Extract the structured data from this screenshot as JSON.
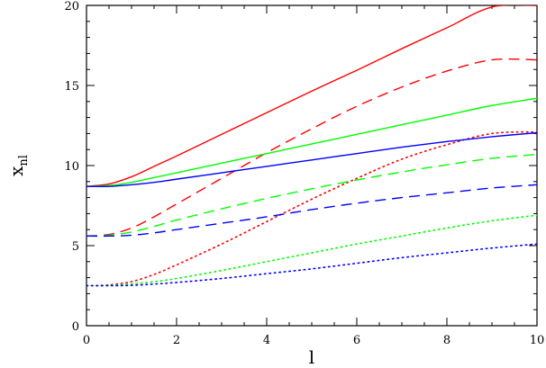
{
  "chart_data": {
    "type": "line",
    "title": "",
    "xlabel": "l",
    "ylabel_main": "x",
    "ylabel_sub": "nl",
    "xlim": [
      0,
      10
    ],
    "ylim": [
      0,
      20
    ],
    "xticks": [
      "0",
      "2",
      "4",
      "6",
      "8",
      "10"
    ],
    "yticks": [
      "0",
      "5",
      "10",
      "15",
      "20"
    ],
    "grid": false,
    "legend": "none",
    "series": [
      {
        "color": "#ff0000",
        "dash": "solid",
        "x": [
          0,
          0.5,
          1,
          1.5,
          2,
          3,
          4,
          5,
          6,
          7,
          8,
          9,
          10
        ],
        "y": [
          8.7,
          8.85,
          9.3,
          9.95,
          10.6,
          11.95,
          13.3,
          14.65,
          15.95,
          17.3,
          18.6,
          19.9,
          20.0
        ]
      },
      {
        "color": "#ff0000",
        "dash": "dashed",
        "x": [
          0,
          0.5,
          1,
          1.5,
          2,
          3,
          4,
          5,
          6,
          7,
          8,
          9,
          10
        ],
        "y": [
          5.6,
          5.7,
          6.1,
          6.8,
          7.6,
          9.2,
          10.8,
          12.3,
          13.7,
          14.9,
          15.9,
          16.6,
          16.6
        ]
      },
      {
        "color": "#ff0000",
        "dash": "dotted",
        "x": [
          0,
          0.5,
          1,
          1.5,
          2,
          3,
          4,
          5,
          6,
          7,
          8,
          9,
          10
        ],
        "y": [
          2.5,
          2.55,
          2.75,
          3.2,
          3.8,
          5.1,
          6.5,
          7.9,
          9.2,
          10.4,
          11.3,
          12.0,
          12.1
        ]
      },
      {
        "color": "#00ff00",
        "dash": "solid",
        "x": [
          0,
          0.5,
          1,
          1.5,
          2,
          3,
          4,
          5,
          6,
          7,
          8,
          9,
          10
        ],
        "y": [
          8.7,
          8.75,
          8.95,
          9.25,
          9.55,
          10.15,
          10.75,
          11.35,
          11.95,
          12.55,
          13.15,
          13.75,
          14.2
        ]
      },
      {
        "color": "#00ff00",
        "dash": "dashed",
        "x": [
          0,
          0.5,
          1,
          1.5,
          2,
          3,
          4,
          5,
          6,
          7,
          8,
          9,
          10
        ],
        "y": [
          5.6,
          5.65,
          5.85,
          6.2,
          6.6,
          7.3,
          7.95,
          8.55,
          9.1,
          9.6,
          10.05,
          10.45,
          10.7
        ]
      },
      {
        "color": "#00ff00",
        "dash": "dotted",
        "x": [
          0,
          0.5,
          1,
          1.5,
          2,
          3,
          4,
          5,
          6,
          7,
          8,
          9,
          10
        ],
        "y": [
          2.5,
          2.52,
          2.6,
          2.75,
          2.95,
          3.45,
          4.0,
          4.55,
          5.1,
          5.6,
          6.1,
          6.55,
          6.9
        ]
      },
      {
        "color": "#0000ff",
        "dash": "solid",
        "x": [
          0,
          0.5,
          1,
          1.5,
          2,
          3,
          4,
          5,
          6,
          7,
          8,
          9,
          10
        ],
        "y": [
          8.7,
          8.7,
          8.8,
          8.95,
          9.15,
          9.55,
          9.95,
          10.35,
          10.75,
          11.15,
          11.5,
          11.8,
          12.05
        ]
      },
      {
        "color": "#0000ff",
        "dash": "dashed",
        "x": [
          0,
          0.5,
          1,
          1.5,
          2,
          3,
          4,
          5,
          6,
          7,
          8,
          9,
          10
        ],
        "y": [
          5.6,
          5.6,
          5.65,
          5.8,
          6.0,
          6.4,
          6.8,
          7.25,
          7.65,
          8.0,
          8.3,
          8.6,
          8.8
        ]
      },
      {
        "color": "#0000ff",
        "dash": "dotted",
        "x": [
          0,
          0.5,
          1,
          1.5,
          2,
          3,
          4,
          5,
          6,
          7,
          8,
          9,
          10
        ],
        "y": [
          2.5,
          2.5,
          2.52,
          2.6,
          2.7,
          2.95,
          3.25,
          3.55,
          3.9,
          4.25,
          4.55,
          4.85,
          5.1
        ]
      }
    ]
  }
}
